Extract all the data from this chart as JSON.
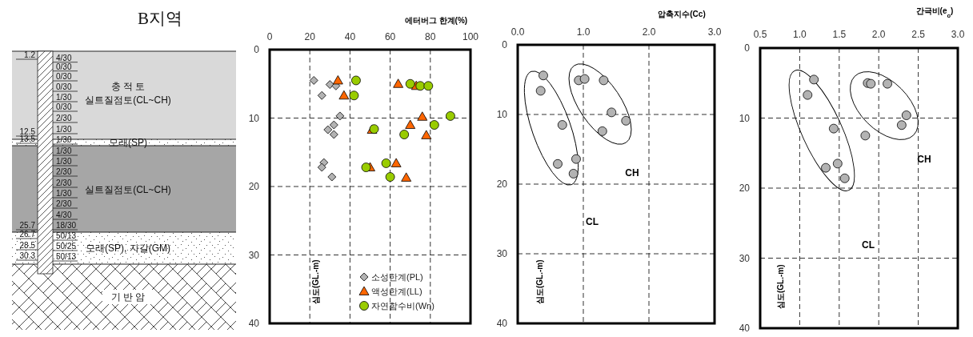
{
  "chart_data": [
    {
      "type": "other",
      "title": "B지역",
      "annotations": [
        "1.2",
        "12.5",
        "13.5",
        "25.7",
        "26.7",
        "28.5",
        "30.3",
        "4/30",
        "0/30",
        "0/30",
        "0/30",
        "1/30",
        "0/30",
        "2/30",
        "1/30",
        "1/30",
        "1/30",
        "1/30",
        "2/30",
        "2/30",
        "1/30",
        "2/30",
        "4/30",
        "18/30",
        "50/13",
        "50/25",
        "50/13",
        "충 적 토",
        "실트질점토(CL~CH)",
        "모래(SP)",
        "실트질점토(CL~CH)",
        "모래(SP), 자갈(GM)",
        "기 반 암"
      ]
    },
    {
      "type": "scatter",
      "xlabel": "에터버그 한계(%)",
      "ylabel": "심도(GL.-m)",
      "xlim": [
        0,
        100
      ],
      "xticks": [
        0,
        20,
        40,
        60,
        80,
        100
      ],
      "ylim": [
        40,
        0
      ],
      "yticks": [
        0,
        10,
        20,
        30,
        40
      ],
      "grid": true,
      "legend": "bottom",
      "series": [
        {
          "name": "소성한계(PL)",
          "color": "#b3b3b3",
          "marker": "diamond",
          "x": [
            22,
            30,
            33,
            26,
            35,
            32,
            29,
            32,
            27,
            26,
            31
          ],
          "values": [
            4.5,
            5.1,
            5.3,
            6.7,
            9.7,
            11.0,
            11.7,
            12.4,
            16.5,
            17.2,
            18.6
          ]
        },
        {
          "name": "액성한계(LL)",
          "color": "#ff6600",
          "marker": "triangle",
          "x": [
            34,
            64,
            73,
            37,
            76,
            70,
            51,
            78,
            63,
            50,
            68
          ],
          "values": [
            4.5,
            5.0,
            5.3,
            6.7,
            9.8,
            11.0,
            11.7,
            12.5,
            16.6,
            17.2,
            18.7
          ]
        },
        {
          "name": "자연함수비(Wn)",
          "color": "#99cc00",
          "marker": "circle",
          "x": [
            43,
            70,
            75,
            79,
            42,
            90,
            82,
            52,
            67,
            58,
            48,
            60
          ],
          "values": [
            4.5,
            5.0,
            5.3,
            5.3,
            6.7,
            9.7,
            11.0,
            11.6,
            12.4,
            16.6,
            17.2,
            18.6
          ]
        }
      ]
    },
    {
      "type": "scatter",
      "xlabel": "압축지수(Cc)",
      "ylabel": "심도(GL.-m)",
      "xlim": [
        0,
        3
      ],
      "xticks": [
        {
          "value": 0,
          "label": "0.0"
        },
        {
          "value": 1,
          "label": "1.0"
        },
        {
          "value": 2,
          "label": "2.0"
        },
        {
          "value": 3,
          "label": "3.0"
        }
      ],
      "ylim": [
        40,
        0
      ],
      "yticks": [
        0,
        10,
        20,
        30,
        40
      ],
      "grid": true,
      "marker": "circle",
      "color": "#b3b3b3",
      "x": [
        0.39,
        0.35,
        0.68,
        0.61,
        0.89,
        0.85,
        0.93,
        1.02,
        1.31,
        1.43,
        1.65,
        1.29
      ],
      "values": [
        4.4,
        6.6,
        11.5,
        17.1,
        16.4,
        18.5,
        5.1,
        4.9,
        5.1,
        9.7,
        10.9,
        12.4
      ],
      "annotations": [
        "CH",
        "CL"
      ]
    },
    {
      "type": "scatter",
      "xlabel": "간극비(e$_{o}$)",
      "ylabel": "심도(GL.-m)",
      "xlim": [
        0.5,
        3
      ],
      "xticks": [
        0.5,
        {
          "value": 1,
          "label": "1.0"
        },
        1.5,
        {
          "value": 2,
          "label": "2.0"
        },
        2.5,
        {
          "value": 3,
          "label": "3.0"
        }
      ],
      "ylim": [
        40,
        0
      ],
      "yticks": [
        0,
        10,
        20,
        30,
        40
      ],
      "grid": true,
      "marker": "circle",
      "color": "#b3b3b3",
      "x": [
        1.18,
        1.1,
        1.43,
        1.33,
        1.48,
        1.57,
        1.86,
        1.9,
        2.11,
        2.35,
        2.29,
        1.83
      ],
      "values": [
        4.5,
        6.7,
        11.5,
        17.1,
        16.5,
        18.6,
        5.0,
        5.1,
        5.1,
        9.6,
        11.0,
        12.5
      ],
      "annotations": [
        "CH",
        "CL"
      ]
    }
  ]
}
